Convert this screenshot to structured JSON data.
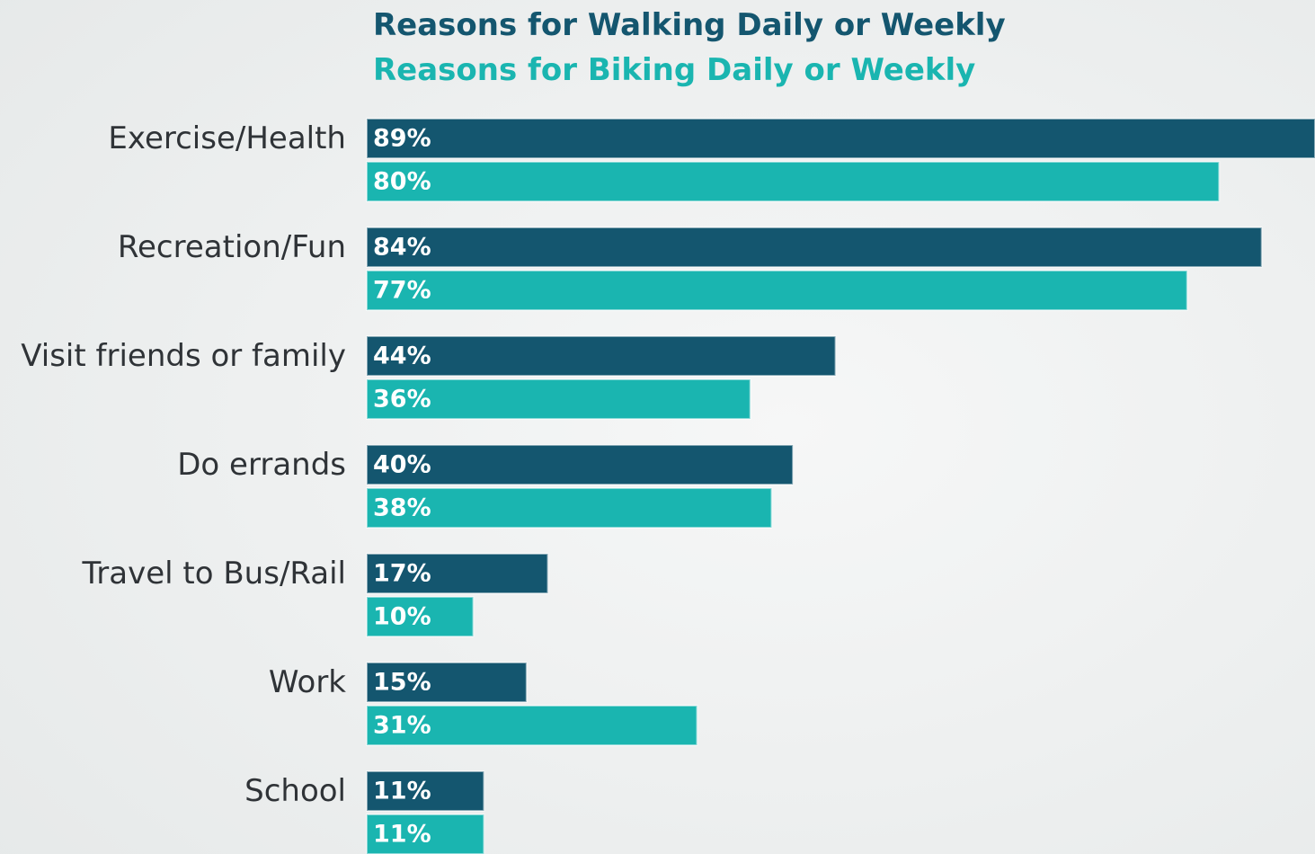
{
  "chart_data": {
    "type": "bar",
    "orientation": "horizontal",
    "categories": [
      "Exercise/Health",
      "Recreation/Fun",
      "Visit friends or family",
      "Do errands",
      "Travel to Bus/Rail",
      "Work",
      "School"
    ],
    "series": [
      {
        "name": "Reasons for Walking Daily or Weekly",
        "color": "#14566f",
        "values": [
          89,
          84,
          44,
          40,
          17,
          15,
          11
        ],
        "value_labels": [
          "89%",
          "84%",
          "44%",
          "40%",
          "17%",
          "15%",
          "11%"
        ]
      },
      {
        "name": "Reasons for Biking Daily or Weekly",
        "color": "#1ab5b0",
        "values": [
          80,
          77,
          36,
          38,
          10,
          31,
          11
        ],
        "value_labels": [
          "80%",
          "77%",
          "36%",
          "38%",
          "10%",
          "31%",
          "11%"
        ]
      }
    ]
  }
}
